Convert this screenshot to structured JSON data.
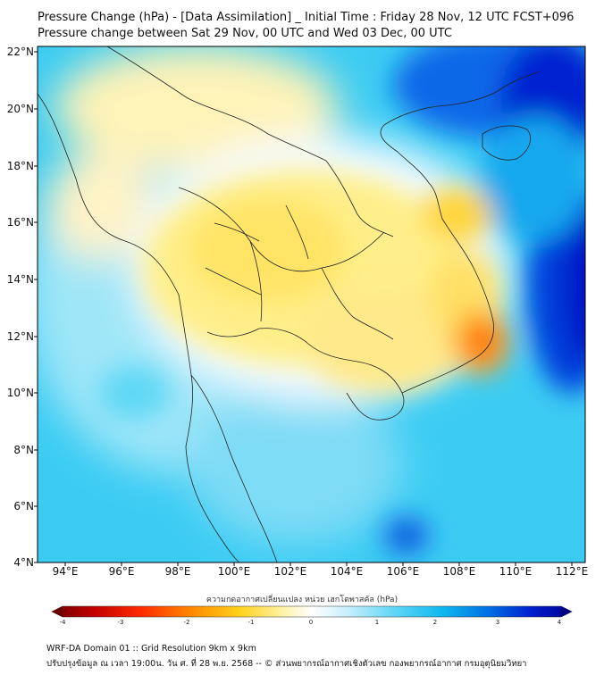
{
  "title_line1": "Pressure Change (hPa) - [Data Assimilation] _ Initial Time : Friday 28 Nov, 12 UTC FCST+096",
  "title_line2": "Pressure change between Sat 29 Nov, 00 UTC and Wed 03 Dec, 00 UTC",
  "lat_labels": [
    "22°N",
    "20°N",
    "18°N",
    "16°N",
    "14°N",
    "12°N",
    "10°N",
    "8°N",
    "6°N",
    "4°N"
  ],
  "lon_labels": [
    "94°E",
    "96°E",
    "98°E",
    "100°E",
    "102°E",
    "104°E",
    "106°E",
    "108°E",
    "110°E",
    "112°E"
  ],
  "colorbar": {
    "title": "ความกดอากาศเปลี่ยนแปลง หน่วย เฮกโตพาสคัล (hPa)",
    "ticks": [
      "-4",
      "-3",
      "-2",
      "-1",
      "0",
      "1",
      "2",
      "3",
      "4"
    ],
    "range": [
      -4,
      4
    ],
    "colors": [
      "#6b0000",
      "#d40000",
      "#ff3b00",
      "#ff9a00",
      "#ffd21a",
      "#fff3a0",
      "#ffffff",
      "#cfeffc",
      "#7fdcf7",
      "#22c4f2",
      "#009be8",
      "#0050e0",
      "#0010c8",
      "#000080"
    ]
  },
  "footer_line1": "WRF-DA Domain 01 :: Grid Resolution 9km x 9km",
  "footer_line2": "ปรับปรุงข้อมูล ณ เวลา 19:00น. วัน ศ. ที่ 28 พ.ย. 2568 -- © ส่วนพยากรณ์อากาศเชิงตัวเลข กองพยากรณ์อากาศ กรมอุตุนิยมวิทยา"
}
